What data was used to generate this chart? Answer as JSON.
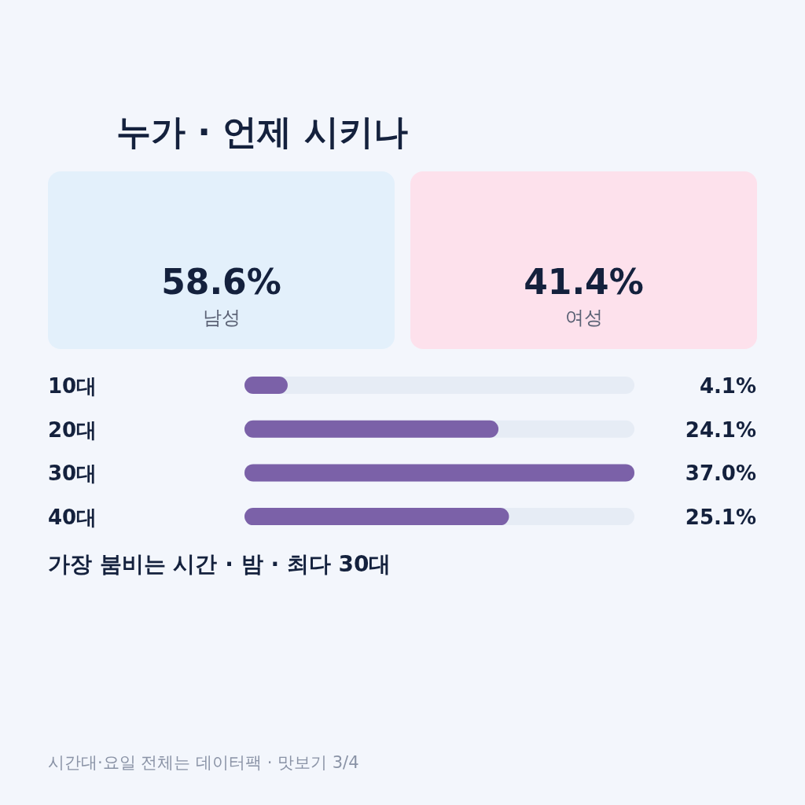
{
  "chart_data": [
    {
      "type": "other",
      "title": "누가 · 언제 시키나",
      "categories": [
        "남성",
        "여성"
      ],
      "value_labels": [
        "58.6%",
        "41.4%"
      ],
      "colors": [
        "#e3f0fb",
        "#fde1ec"
      ]
    },
    {
      "type": "bar",
      "orientation": "horizontal",
      "categories": [
        "10대",
        "20대",
        "30대",
        "40대"
      ],
      "values": [
        4.1,
        24.1,
        37.0,
        25.1
      ],
      "value_labels": [
        "4.1%",
        "24.1%",
        "37.0%",
        "25.1%"
      ],
      "color": "#7b61a8",
      "annotations": [
        "가장 붐비는 시간 · 밤 · 최다 30대",
        "시간대·요일 전체는 데이터팩 · 맛보기 3/4"
      ]
    }
  ]
}
